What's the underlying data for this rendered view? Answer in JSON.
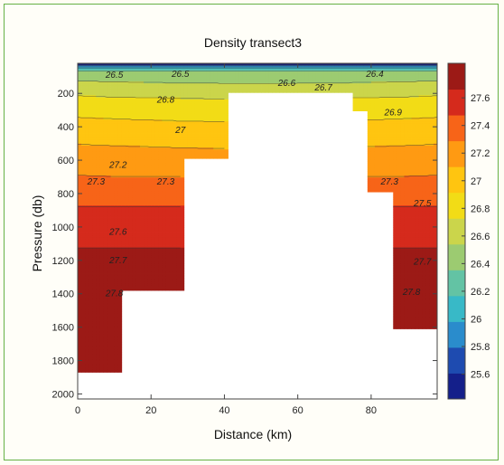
{
  "chart_data": {
    "type": "heatmap",
    "subtype": "filled-contour",
    "title": "Density transect3",
    "xlabel": "Distance (km)",
    "ylabel": "Pressure (db)",
    "xlim": [
      0,
      98
    ],
    "ylim": [
      2030,
      20
    ],
    "y_reversed": true,
    "x_ticks": [
      0,
      20,
      40,
      60,
      80
    ],
    "y_ticks": [
      200,
      400,
      600,
      800,
      1000,
      1200,
      1400,
      1600,
      1800,
      2000
    ],
    "colorbar": {
      "range": [
        25.42,
        27.85
      ],
      "ticks": [
        25.6,
        25.8,
        26,
        26.2,
        26.4,
        26.6,
        26.8,
        27,
        27.2,
        27.4,
        27.6
      ],
      "tick_labels": [
        "25.6",
        "25.8",
        "26",
        "26.2",
        "26.4",
        "26.6",
        "26.8",
        "27",
        "27.2",
        "27.4",
        "27.6"
      ],
      "colors": [
        "#141f8a",
        "#1e4bb0",
        "#2a8ccc",
        "#38b9c7",
        "#63c3a4",
        "#9ccb71",
        "#cbd54b",
        "#f2dc16",
        "#ffc510",
        "#ff9a12",
        "#f76418",
        "#d52a1c",
        "#9c1a16"
      ]
    },
    "grid": false,
    "legend": "colorbar-right",
    "depth_coverage": [
      {
        "x": [
          0,
          12
        ],
        "max_pressure": 1870
      },
      {
        "x": [
          12,
          29
        ],
        "max_pressure": 1380
      },
      {
        "x": [
          29,
          41
        ],
        "max_pressure": 590
      },
      {
        "x": [
          41,
          75
        ],
        "max_pressure": 195
      },
      {
        "x": [
          75,
          79
        ],
        "max_pressure": 305
      },
      {
        "x": [
          79,
          86
        ],
        "max_pressure": 790
      },
      {
        "x": [
          86,
          98
        ],
        "max_pressure": 1610
      }
    ],
    "density_profile": {
      "pressure": [
        20,
        45,
        70,
        100,
        130,
        170,
        210,
        260,
        330,
        420,
        520,
        600,
        700,
        800,
        900,
        1000,
        1100,
        1200,
        1300,
        1400,
        1500,
        1600,
        1700,
        1900
      ],
      "density": [
        25.45,
        26.1,
        26.4,
        26.5,
        26.55,
        26.63,
        26.72,
        26.8,
        26.9,
        27.0,
        27.12,
        27.2,
        27.3,
        27.4,
        27.5,
        27.58,
        27.65,
        27.7,
        27.75,
        27.8,
        27.83,
        27.86,
        27.88,
        27.9
      ]
    },
    "contour_labels": [
      {
        "text": "26.5",
        "x": 10,
        "p": 90
      },
      {
        "text": "26.5",
        "x": 28,
        "p": 85
      },
      {
        "text": "26.6",
        "x": 57,
        "p": 140
      },
      {
        "text": "26.7",
        "x": 67,
        "p": 165
      },
      {
        "text": "26.4",
        "x": 81,
        "p": 85
      },
      {
        "text": "26.8",
        "x": 24,
        "p": 240
      },
      {
        "text": "26.9",
        "x": 86,
        "p": 315
      },
      {
        "text": "27",
        "x": 28,
        "p": 420
      },
      {
        "text": "27.2",
        "x": 11,
        "p": 630
      },
      {
        "text": "27.3",
        "x": 5,
        "p": 730
      },
      {
        "text": "27.3",
        "x": 24,
        "p": 730
      },
      {
        "text": "27.3",
        "x": 85,
        "p": 730
      },
      {
        "text": "27.5",
        "x": 94,
        "p": 860
      },
      {
        "text": "27.6",
        "x": 11,
        "p": 1030
      },
      {
        "text": "27.7",
        "x": 11,
        "p": 1200
      },
      {
        "text": "27.7",
        "x": 94,
        "p": 1210
      },
      {
        "text": "27.8",
        "x": 10,
        "p": 1400
      },
      {
        "text": "27.8",
        "x": 91,
        "p": 1390
      }
    ]
  }
}
